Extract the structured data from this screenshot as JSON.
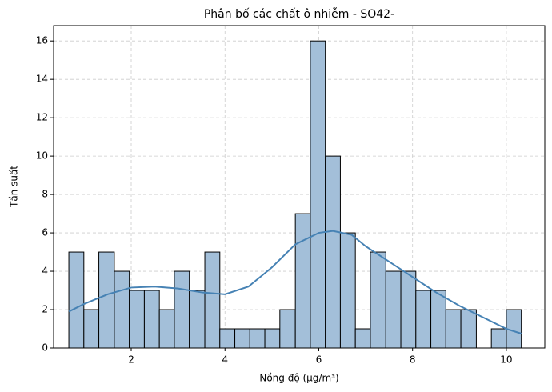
{
  "chart_data": {
    "type": "histogram",
    "title": "Phân bố các chất ô nhiễm - SO42-",
    "x_label": "Nồng độ (µg/m³)",
    "y_label": "Tần suất",
    "bins": [
      0.67,
      0.99,
      1.31,
      1.64,
      1.96,
      2.28,
      2.6,
      2.92,
      3.24,
      3.57,
      3.89,
      4.21,
      4.53,
      4.85,
      5.17,
      5.5,
      5.82,
      6.14,
      6.46,
      6.78,
      7.1,
      7.43,
      7.75,
      8.07,
      8.39,
      8.71,
      9.03,
      9.36,
      9.68,
      10.0,
      10.32
    ],
    "counts": [
      5,
      2,
      5,
      4,
      3,
      3,
      2,
      4,
      3,
      5,
      1,
      1,
      1,
      1,
      2,
      7,
      16,
      10,
      6,
      1,
      5,
      4,
      4,
      3,
      3,
      2,
      2,
      0,
      1,
      2
    ],
    "color": "#a3bfd9",
    "edge_color": "#000000",
    "kde": {
      "color": "#4682b4",
      "x": [
        0.67,
        1,
        1.5,
        2,
        2.5,
        3,
        3.5,
        4,
        4.5,
        5,
        5.5,
        6,
        6.3,
        6.7,
        7,
        7.5,
        8,
        8.5,
        9,
        9.5,
        10,
        10.32
      ],
      "values": [
        1.9,
        2.3,
        2.8,
        3.15,
        3.2,
        3.1,
        2.9,
        2.8,
        3.2,
        4.2,
        5.4,
        6.0,
        6.1,
        5.9,
        5.3,
        4.5,
        3.7,
        2.9,
        2.2,
        1.6,
        1.0,
        0.75
      ]
    },
    "xlim": [
      0.345,
      10.82
    ],
    "xticks": [
      2,
      4,
      6,
      8,
      10
    ],
    "ylim": [
      0,
      16.8
    ],
    "yticks": [
      0,
      2,
      4,
      6,
      8,
      10,
      12,
      14,
      16
    ],
    "grid": true
  }
}
